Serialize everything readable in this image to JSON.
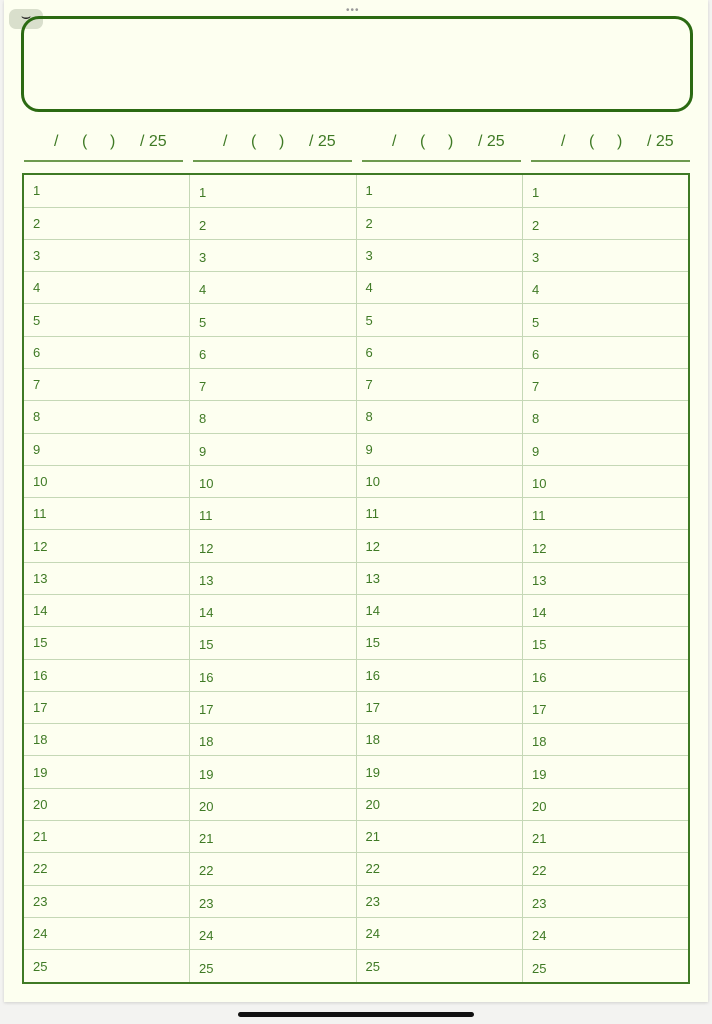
{
  "toolbar": {
    "more_icon": "ellipsis-icon",
    "collapse_icon": "chevron-down-icon",
    "more_label": "•••",
    "collapse_label": "⌄"
  },
  "headers": [
    {
      "slash": "/",
      "open": "(",
      "close": ")",
      "total": "/ 25"
    },
    {
      "slash": "/",
      "open": "(",
      "close": ")",
      "total": "/ 25"
    },
    {
      "slash": "/",
      "open": "(",
      "close": ")",
      "total": "/ 25"
    },
    {
      "slash": "/",
      "open": "(",
      "close": ")",
      "total": "/ 25"
    }
  ],
  "table": {
    "columns": 4,
    "row_numbers": [
      "1",
      "2",
      "3",
      "4",
      "5",
      "6",
      "7",
      "8",
      "9",
      "10",
      "11",
      "12",
      "13",
      "14",
      "15",
      "16",
      "17",
      "18",
      "19",
      "20",
      "21",
      "22",
      "23",
      "24",
      "25"
    ]
  },
  "colors": {
    "accent": "#2b6a12",
    "paper": "#fdfff0",
    "text": "#3f7a25"
  }
}
